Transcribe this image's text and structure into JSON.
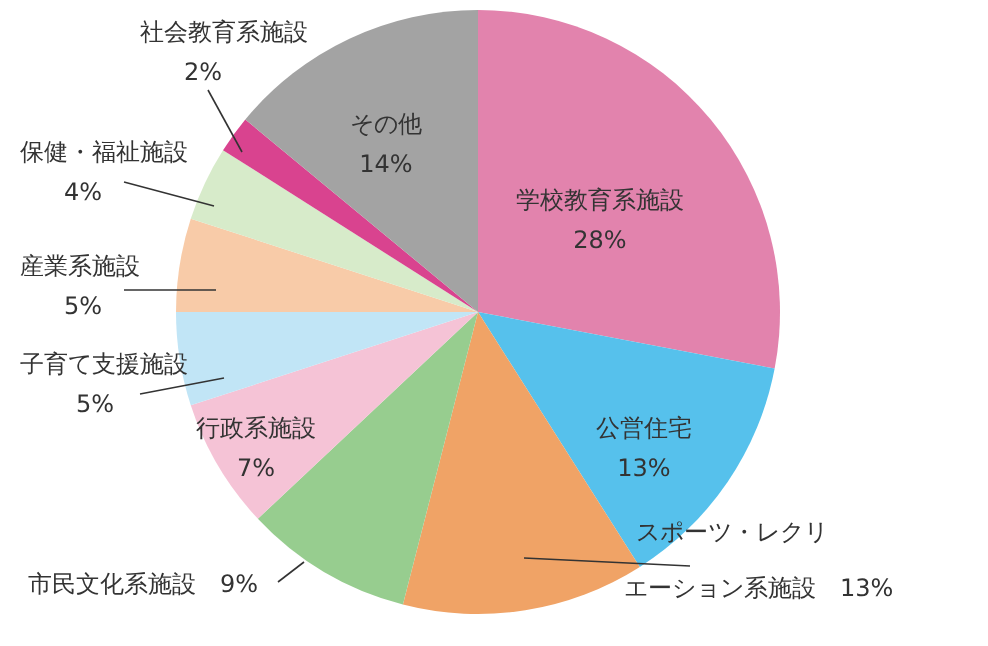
{
  "chart_data": {
    "type": "pie",
    "categories": [
      "学校教育系施設",
      "公営住宅",
      "スポーツ・レクリエーション系施設",
      "市民文化系施設",
      "行政系施設",
      "子育て支援施設",
      "産業系施設",
      "保健・福祉施設",
      "社会教育系施設",
      "その他"
    ],
    "values": [
      28,
      13,
      13,
      9,
      7,
      5,
      5,
      4,
      2,
      14
    ],
    "value_labels": [
      "28%",
      "13%",
      "13%",
      "9%",
      "7%",
      "5%",
      "5%",
      "4%",
      "2%",
      "14%"
    ],
    "colors": [
      "#e283ad",
      "#56c1ec",
      "#f0a366",
      "#97cd8f",
      "#f5c3d6",
      "#c1e5f6",
      "#f8cba8",
      "#d7ebca",
      "#d9438f",
      "#a3a3a3"
    ]
  }
}
